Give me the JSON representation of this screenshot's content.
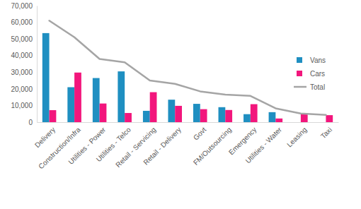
{
  "chart_data": {
    "type": "bar",
    "categories": [
      "Delivery",
      "Construction/Infra",
      "Utilities - Power",
      "Utilities - Telco",
      "Retail - Servicing",
      "Retail - Delivery",
      "Govt",
      "FM/Outsourcing",
      "Emergency",
      "Utilities - Water",
      "Leasing",
      "Taxi"
    ],
    "series": [
      {
        "name": "Vans",
        "type": "bar",
        "color": "#1f8fc1",
        "values": [
          53500,
          21000,
          26500,
          30500,
          6800,
          13500,
          11000,
          9000,
          4800,
          6000,
          0,
          0
        ]
      },
      {
        "name": "Cars",
        "type": "bar",
        "color": "#f2167c",
        "values": [
          7200,
          29800,
          11200,
          5500,
          18000,
          9800,
          7800,
          7300,
          10800,
          2200,
          5000,
          4200
        ]
      },
      {
        "name": "Total",
        "type": "line",
        "color": "#a5a5a5",
        "values": [
          61000,
          51000,
          38000,
          36000,
          25000,
          23000,
          18500,
          16500,
          15800,
          8300,
          5200,
          4300
        ]
      }
    ],
    "ylim": [
      0,
      70000
    ],
    "yticks": [
      0,
      {
        "value": 10000,
        "label": "10,000"
      },
      {
        "value": 20000,
        "label": "20,000"
      },
      {
        "value": 30000,
        "label": "30,000"
      },
      {
        "value": 40000,
        "label": "40,000"
      },
      {
        "value": 50000,
        "label": "50,000"
      },
      {
        "value": 60000,
        "label": "60,000"
      },
      {
        "value": 70000,
        "label": "70,000"
      }
    ],
    "grid": false,
    "legend": "right"
  }
}
